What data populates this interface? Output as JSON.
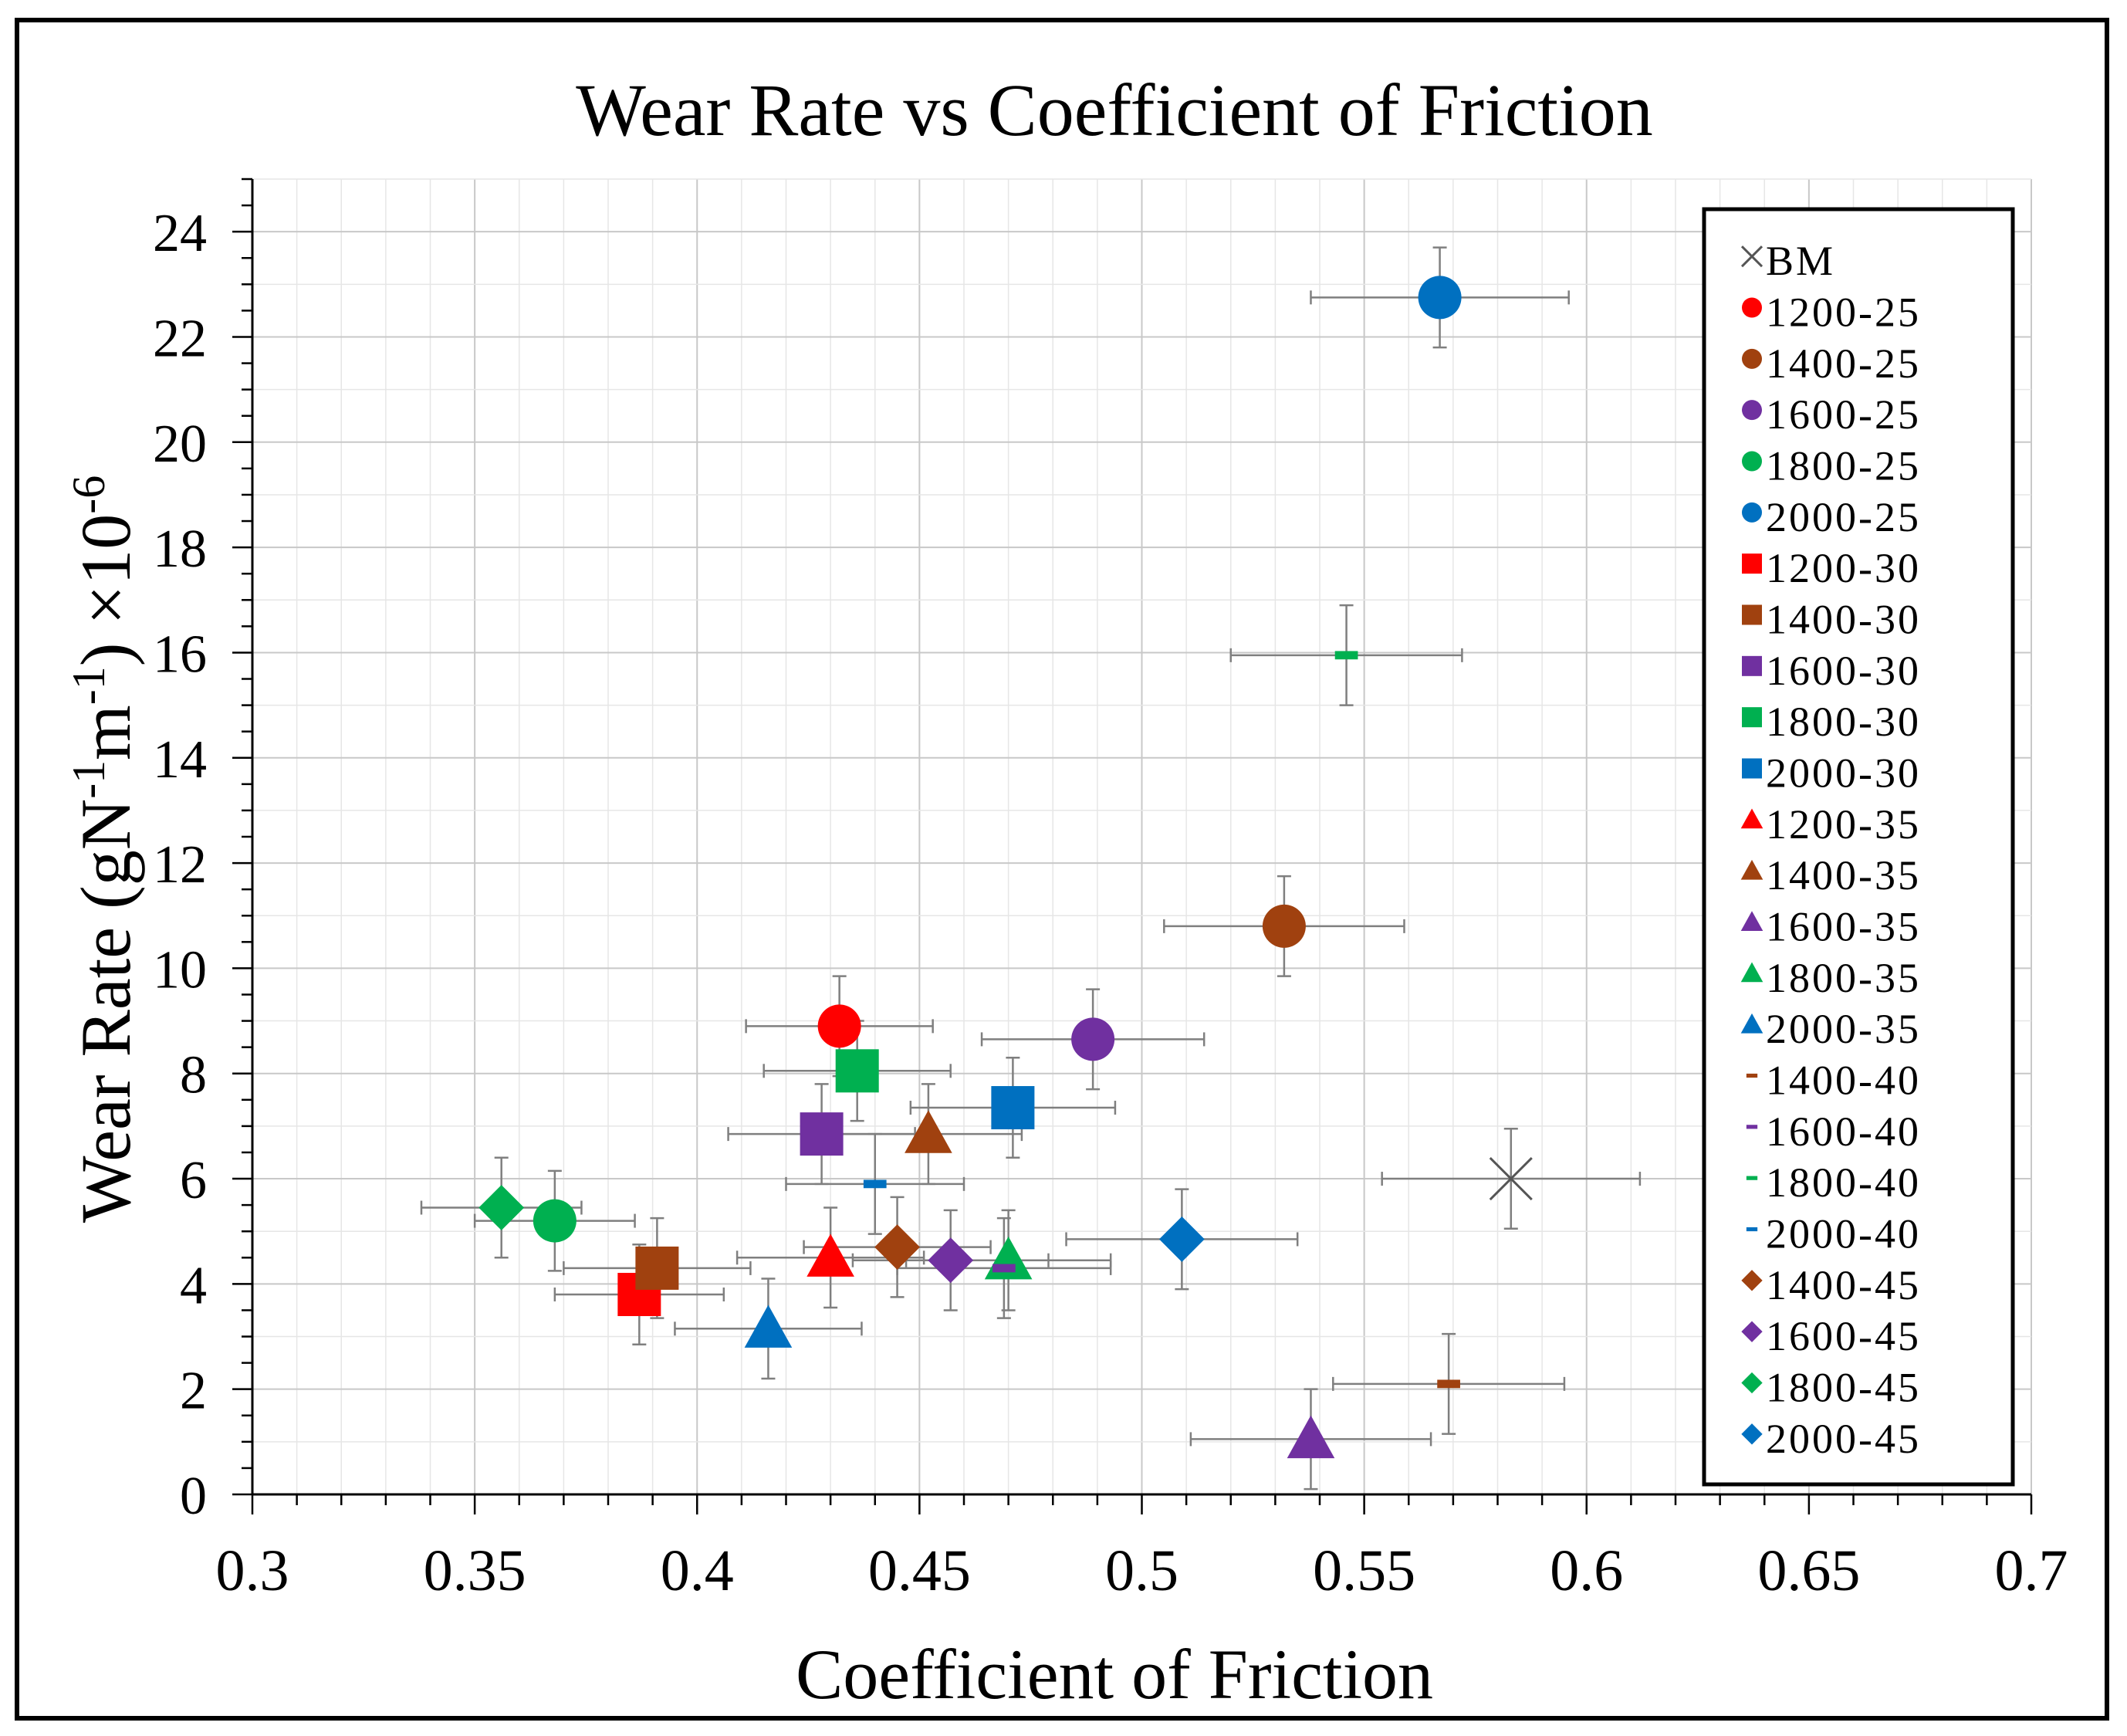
{
  "chart_data": {
    "type": "scatter",
    "title": "Wear Rate vs Coefficient of Friction",
    "xlabel": "Coefficient of Friction",
    "ylabel": {
      "text": "Wear Rate (gN-1m-1) ×10-6",
      "base": "Wear Rate (gN",
      "sup1": "-1",
      "mid": "m",
      "sup2": "-1",
      "tail": ") ×10",
      "sup3": "-6"
    },
    "xlim": [
      0.3,
      0.7
    ],
    "ylim": [
      0,
      25
    ],
    "xticks": [
      "0.3",
      "0.35",
      "0.4",
      "0.45",
      "0.5",
      "0.55",
      "0.6",
      "0.65",
      "0.7"
    ],
    "yticks": [
      "0",
      "2",
      "4",
      "6",
      "8",
      "10",
      "12",
      "14",
      "16",
      "18",
      "20",
      "22",
      "24"
    ],
    "grid": true,
    "legend_position": "right",
    "colors": {
      "1200": "#ff0000",
      "1400": "#a0410f",
      "1600": "#7030a0",
      "1800": "#00b050",
      "2000": "#0070c0",
      "BM": "#555555"
    },
    "series": [
      {
        "name": "BM",
        "color_key": "BM",
        "marker": "x",
        "x": 0.583,
        "y": 6.0,
        "xerr": 0.029,
        "yerr": 0.95
      },
      {
        "name": "1200-25",
        "color_key": "1200",
        "marker": "circle",
        "x": 0.432,
        "y": 8.9,
        "xerr": 0.021,
        "yerr": 0.95
      },
      {
        "name": "1400-25",
        "color_key": "1400",
        "marker": "circle",
        "x": 0.532,
        "y": 10.8,
        "xerr": 0.027,
        "yerr": 0.95
      },
      {
        "name": "1600-25",
        "color_key": "1600",
        "marker": "circle",
        "x": 0.489,
        "y": 8.65,
        "xerr": 0.025,
        "yerr": 0.95
      },
      {
        "name": "1800-25",
        "color_key": "1800",
        "marker": "circle",
        "x": 0.368,
        "y": 5.2,
        "xerr": 0.018,
        "yerr": 0.95
      },
      {
        "name": "2000-25",
        "color_key": "2000",
        "marker": "circle",
        "x": 0.567,
        "y": 22.75,
        "xerr": 0.029,
        "yerr": 0.95
      },
      {
        "name": "1200-30",
        "color_key": "1200",
        "marker": "square",
        "x": 0.387,
        "y": 3.8,
        "xerr": 0.019,
        "yerr": 0.95
      },
      {
        "name": "1400-30",
        "color_key": "1400",
        "marker": "square",
        "x": 0.391,
        "y": 4.3,
        "xerr": 0.021,
        "yerr": 0.95
      },
      {
        "name": "1600-30",
        "color_key": "1600",
        "marker": "square",
        "x": 0.428,
        "y": 6.85,
        "xerr": 0.021,
        "yerr": 0.95
      },
      {
        "name": "1800-30",
        "color_key": "1800",
        "marker": "square",
        "x": 0.436,
        "y": 8.05,
        "xerr": 0.021,
        "yerr": 0.95
      },
      {
        "name": "2000-30",
        "color_key": "2000",
        "marker": "square",
        "x": 0.471,
        "y": 7.35,
        "xerr": 0.023,
        "yerr": 0.95
      },
      {
        "name": "1200-35",
        "color_key": "1200",
        "marker": "triangle",
        "x": 0.43,
        "y": 4.5,
        "xerr": 0.021,
        "yerr": 0.95
      },
      {
        "name": "1400-35",
        "color_key": "1400",
        "marker": "triangle",
        "x": 0.452,
        "y": 6.85,
        "xerr": 0.021,
        "yerr": 0.95
      },
      {
        "name": "1600-35",
        "color_key": "1600",
        "marker": "triangle",
        "x": 0.538,
        "y": 1.05,
        "xerr": 0.027,
        "yerr": 0.95
      },
      {
        "name": "1800-35",
        "color_key": "1800",
        "marker": "triangle",
        "x": 0.47,
        "y": 4.45,
        "xerr": 0.023,
        "yerr": 0.95
      },
      {
        "name": "2000-35",
        "color_key": "2000",
        "marker": "triangle",
        "x": 0.416,
        "y": 3.15,
        "xerr": 0.021,
        "yerr": 0.95
      },
      {
        "name": "1400-40",
        "color_key": "1400",
        "marker": "dash",
        "x": 0.569,
        "y": 2.1,
        "xerr": 0.026,
        "yerr": 0.95
      },
      {
        "name": "1600-40",
        "color_key": "1600",
        "marker": "dash",
        "x": 0.469,
        "y": 4.3,
        "xerr": 0.024,
        "yerr": 0.95
      },
      {
        "name": "1800-40",
        "color_key": "1800",
        "marker": "dash",
        "x": 0.546,
        "y": 15.95,
        "xerr": 0.026,
        "yerr": 0.95
      },
      {
        "name": "2000-40",
        "color_key": "2000",
        "marker": "dash",
        "x": 0.44,
        "y": 5.9,
        "xerr": 0.02,
        "yerr": 0.95
      },
      {
        "name": "1400-45",
        "color_key": "1400",
        "marker": "diamond",
        "x": 0.445,
        "y": 4.7,
        "xerr": 0.021,
        "yerr": 0.95
      },
      {
        "name": "1600-45",
        "color_key": "1600",
        "marker": "diamond",
        "x": 0.457,
        "y": 4.45,
        "xerr": 0.022,
        "yerr": 0.95
      },
      {
        "name": "1800-45",
        "color_key": "1800",
        "marker": "diamond",
        "x": 0.356,
        "y": 5.45,
        "xerr": 0.018,
        "yerr": 0.95
      },
      {
        "name": "2000-45",
        "color_key": "2000",
        "marker": "diamond",
        "x": 0.509,
        "y": 4.85,
        "xerr": 0.026,
        "yerr": 0.95
      }
    ]
  }
}
